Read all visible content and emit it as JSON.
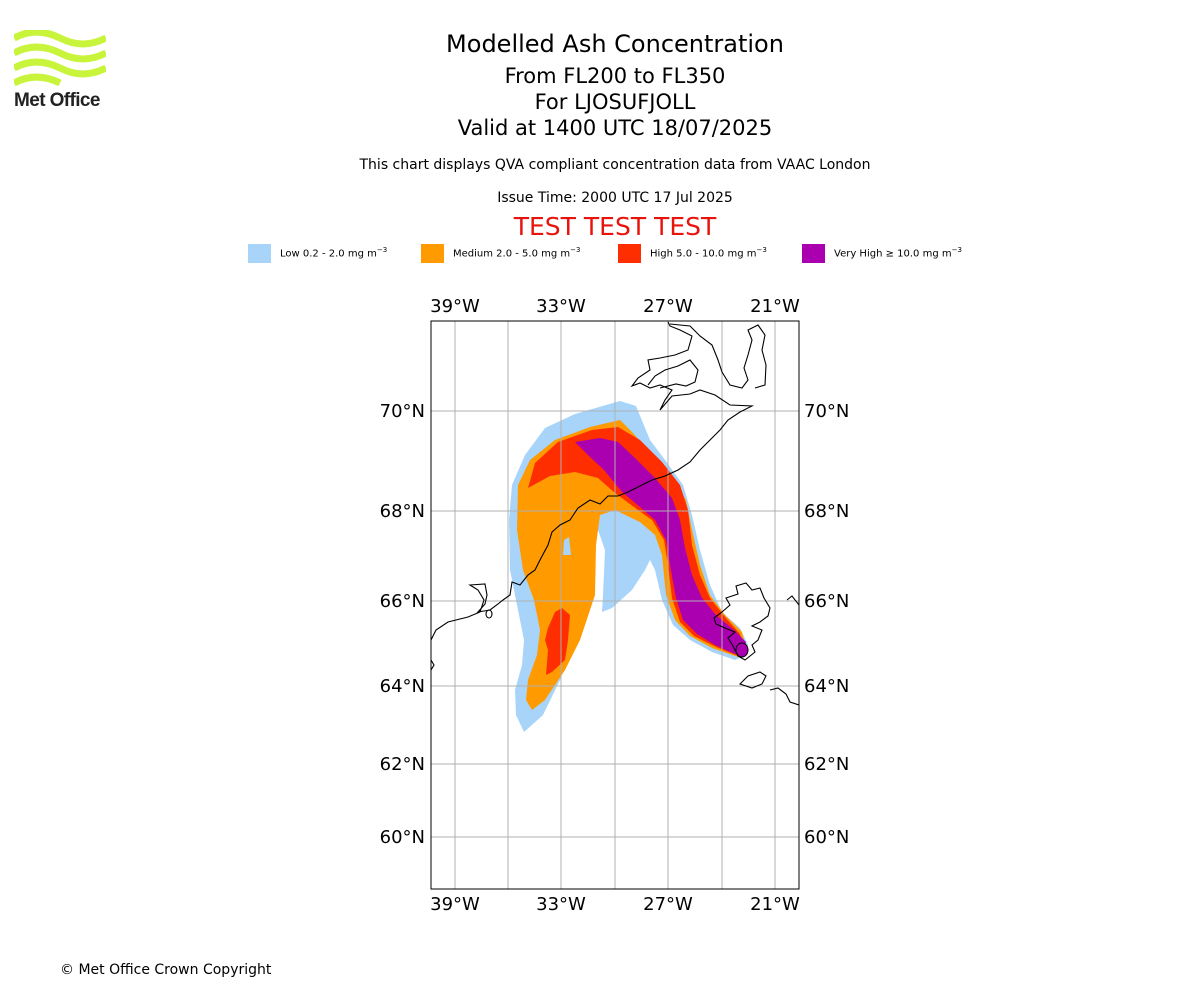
{
  "logo": {
    "text": "Met Office",
    "color": "#c8f53c"
  },
  "header": {
    "title": "Modelled Ash Concentration",
    "levels": "From FL200 to FL350",
    "volcano": "For LJOSUFJOLL",
    "valid": "Valid at 1400 UTC 18/07/2025",
    "note": "This chart displays QVA compliant concentration data from VAAC London",
    "issue": "Issue Time: 2000 UTC 17 Jul 2025",
    "test_banner": "TEST TEST TEST"
  },
  "legend": [
    {
      "label": "Low 0.2 - 2.0 mg m",
      "sup": "−3",
      "color": "#a8d4fa"
    },
    {
      "label": "Medium 2.0 - 5.0 mg m",
      "sup": "−3",
      "color": "#ff9a00"
    },
    {
      "label": "High 5.0 - 10.0 mg m",
      "sup": "−3",
      "color": "#ff2e00"
    },
    {
      "label": "Very High  ≥  10.0 mg m",
      "sup": "−3",
      "color": "#aa00b0"
    }
  ],
  "map": {
    "lon_ticks": [
      "39°W",
      "33°W",
      "27°W",
      "21°W"
    ],
    "lat_ticks": [
      "70°N",
      "68°N",
      "66°N",
      "64°N",
      "62°N",
      "60°N"
    ],
    "extent": {
      "lon_min": -40.4,
      "lon_max": -19.6,
      "lat_min": 58.8,
      "lat_max": 71.8
    },
    "source_marker": "volcano location near 64.8°N 22.2°W"
  },
  "footer": {
    "copyright": "© Met Office Crown Copyright"
  }
}
